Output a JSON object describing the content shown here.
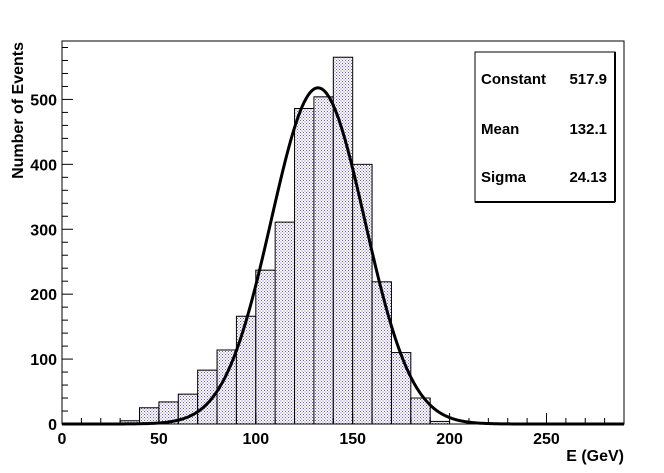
{
  "chart_data": {
    "type": "bar",
    "subtype": "histogram-with-gaussian-fit",
    "title": "",
    "xlabel": "E (GeV)",
    "ylabel": "Number of Events",
    "xlim": [
      0,
      290
    ],
    "ylim": [
      0,
      590
    ],
    "x_ticks": [
      0,
      50,
      100,
      150,
      200,
      250
    ],
    "y_ticks": [
      0,
      100,
      200,
      300,
      400,
      500
    ],
    "grid": false,
    "bin_width": 10,
    "bins": [
      {
        "x0": 30,
        "value": 5
      },
      {
        "x0": 40,
        "value": 25
      },
      {
        "x0": 50,
        "value": 34
      },
      {
        "x0": 60,
        "value": 46
      },
      {
        "x0": 70,
        "value": 83
      },
      {
        "x0": 80,
        "value": 114
      },
      {
        "x0": 90,
        "value": 166
      },
      {
        "x0": 100,
        "value": 237
      },
      {
        "x0": 110,
        "value": 311
      },
      {
        "x0": 120,
        "value": 486
      },
      {
        "x0": 130,
        "value": 504
      },
      {
        "x0": 140,
        "value": 565
      },
      {
        "x0": 150,
        "value": 400
      },
      {
        "x0": 160,
        "value": 219
      },
      {
        "x0": 170,
        "value": 110
      },
      {
        "x0": 180,
        "value": 40
      },
      {
        "x0": 190,
        "value": 4
      }
    ],
    "fit": {
      "function": "gaussian",
      "constant": 517.9,
      "mean": 132.1,
      "sigma": 24.13
    },
    "stats_box": {
      "placement": "top-right",
      "rows": [
        {
          "label": "Constant",
          "value": "517.9"
        },
        {
          "label": "Mean",
          "value": "132.1"
        },
        {
          "label": "Sigma",
          "value": "24.13"
        }
      ]
    },
    "colors": {
      "fill": "#6b5aa0",
      "outline": "#000000",
      "fit_line": "#000000"
    }
  }
}
